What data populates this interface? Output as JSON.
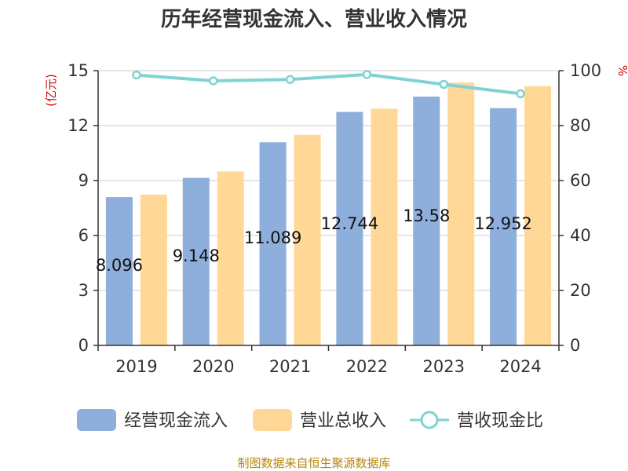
{
  "chart_data": {
    "type": "bar",
    "title": "历年经营现金流入、营业收入情况",
    "categories": [
      "2019",
      "2020",
      "2021",
      "2022",
      "2023",
      "2024"
    ],
    "series": [
      {
        "name": "经营现金流入",
        "kind": "bar",
        "axis": "left",
        "color": "#8eaedb",
        "values": [
          8.096,
          9.148,
          11.089,
          12.744,
          13.58,
          12.952
        ],
        "labels": [
          "8.096",
          "9.148",
          "11.089",
          "12.744",
          "13.58",
          "12.952"
        ]
      },
      {
        "name": "营业总收入",
        "kind": "bar",
        "axis": "left",
        "color": "#ffd898",
        "values": [
          8.23,
          9.5,
          11.5,
          12.92,
          14.35,
          14.15
        ]
      },
      {
        "name": "营收现金比",
        "kind": "line",
        "axis": "right",
        "color": "#7fd3d3",
        "values": [
          98.4,
          96.3,
          96.8,
          98.6,
          95.0,
          91.6
        ]
      }
    ],
    "left_axis": {
      "unit": "(亿元)",
      "ylim": [
        0,
        15
      ],
      "ticks": [
        "0",
        "3",
        "6",
        "9",
        "12",
        "15"
      ]
    },
    "right_axis": {
      "unit": "%",
      "ylim": [
        0,
        100
      ],
      "ticks": [
        "0",
        "20",
        "40",
        "60",
        "80",
        "100"
      ]
    },
    "grid": true,
    "legend_position": "bottom"
  },
  "source": "制图数据来自恒生聚源数据库"
}
